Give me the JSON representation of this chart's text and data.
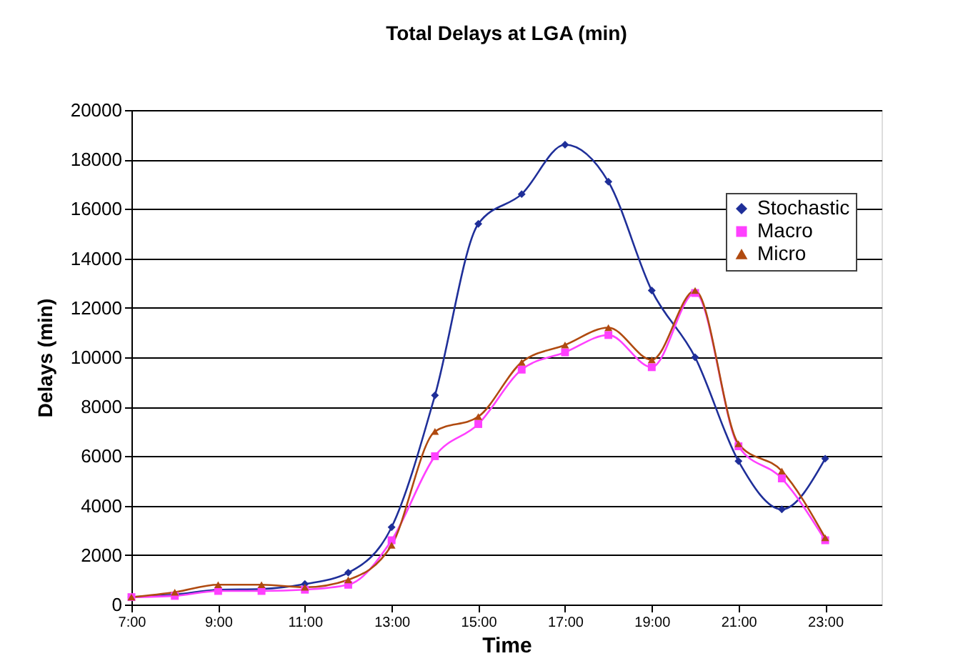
{
  "chart_data": {
    "type": "line",
    "title": "Total Delays at LGA (min)",
    "xlabel": "Time",
    "ylabel": "Delays (min)",
    "x": [
      7,
      8,
      9,
      10,
      11,
      12,
      13,
      14,
      15,
      16,
      17,
      18,
      19,
      20,
      21,
      22,
      23
    ],
    "series": [
      {
        "name": "Stochastic",
        "color": "#1f2f99",
        "marker": "diamond",
        "values": [
          300,
          400,
          600,
          630,
          830,
          1290,
          3130,
          8460,
          15400,
          16600,
          18600,
          17100,
          12700,
          10000,
          5800,
          3850,
          5900
        ]
      },
      {
        "name": "Macro",
        "color": "#ff40ff",
        "marker": "square",
        "values": [
          300,
          350,
          550,
          550,
          600,
          800,
          2600,
          6000,
          7300,
          9500,
          10200,
          10900,
          9600,
          12600,
          6400,
          5100,
          2600
        ]
      },
      {
        "name": "Micro",
        "color": "#b04a10",
        "marker": "triangle",
        "values": [
          300,
          500,
          800,
          800,
          700,
          1000,
          2400,
          7000,
          7600,
          9800,
          10500,
          11200,
          9900,
          12700,
          6500,
          5400,
          2700
        ]
      }
    ],
    "xlim": [
      7,
      24.3
    ],
    "xticks": [
      {
        "value": 7,
        "label": "7:00"
      },
      {
        "value": 9,
        "label": "9:00"
      },
      {
        "value": 11,
        "label": "11:00"
      },
      {
        "value": 13,
        "label": "13:00"
      },
      {
        "value": 15,
        "label": "15:00"
      },
      {
        "value": 17,
        "label": "17:00"
      },
      {
        "value": 19,
        "label": "19:00"
      },
      {
        "value": 21,
        "label": "21:00"
      },
      {
        "value": 23,
        "label": "23:00"
      }
    ],
    "ylim": [
      0,
      20000
    ],
    "yticks": [
      0,
      2000,
      4000,
      6000,
      8000,
      10000,
      12000,
      14000,
      16000,
      18000,
      20000
    ],
    "grid": "y",
    "legend": "top right",
    "line_style": "solid"
  }
}
